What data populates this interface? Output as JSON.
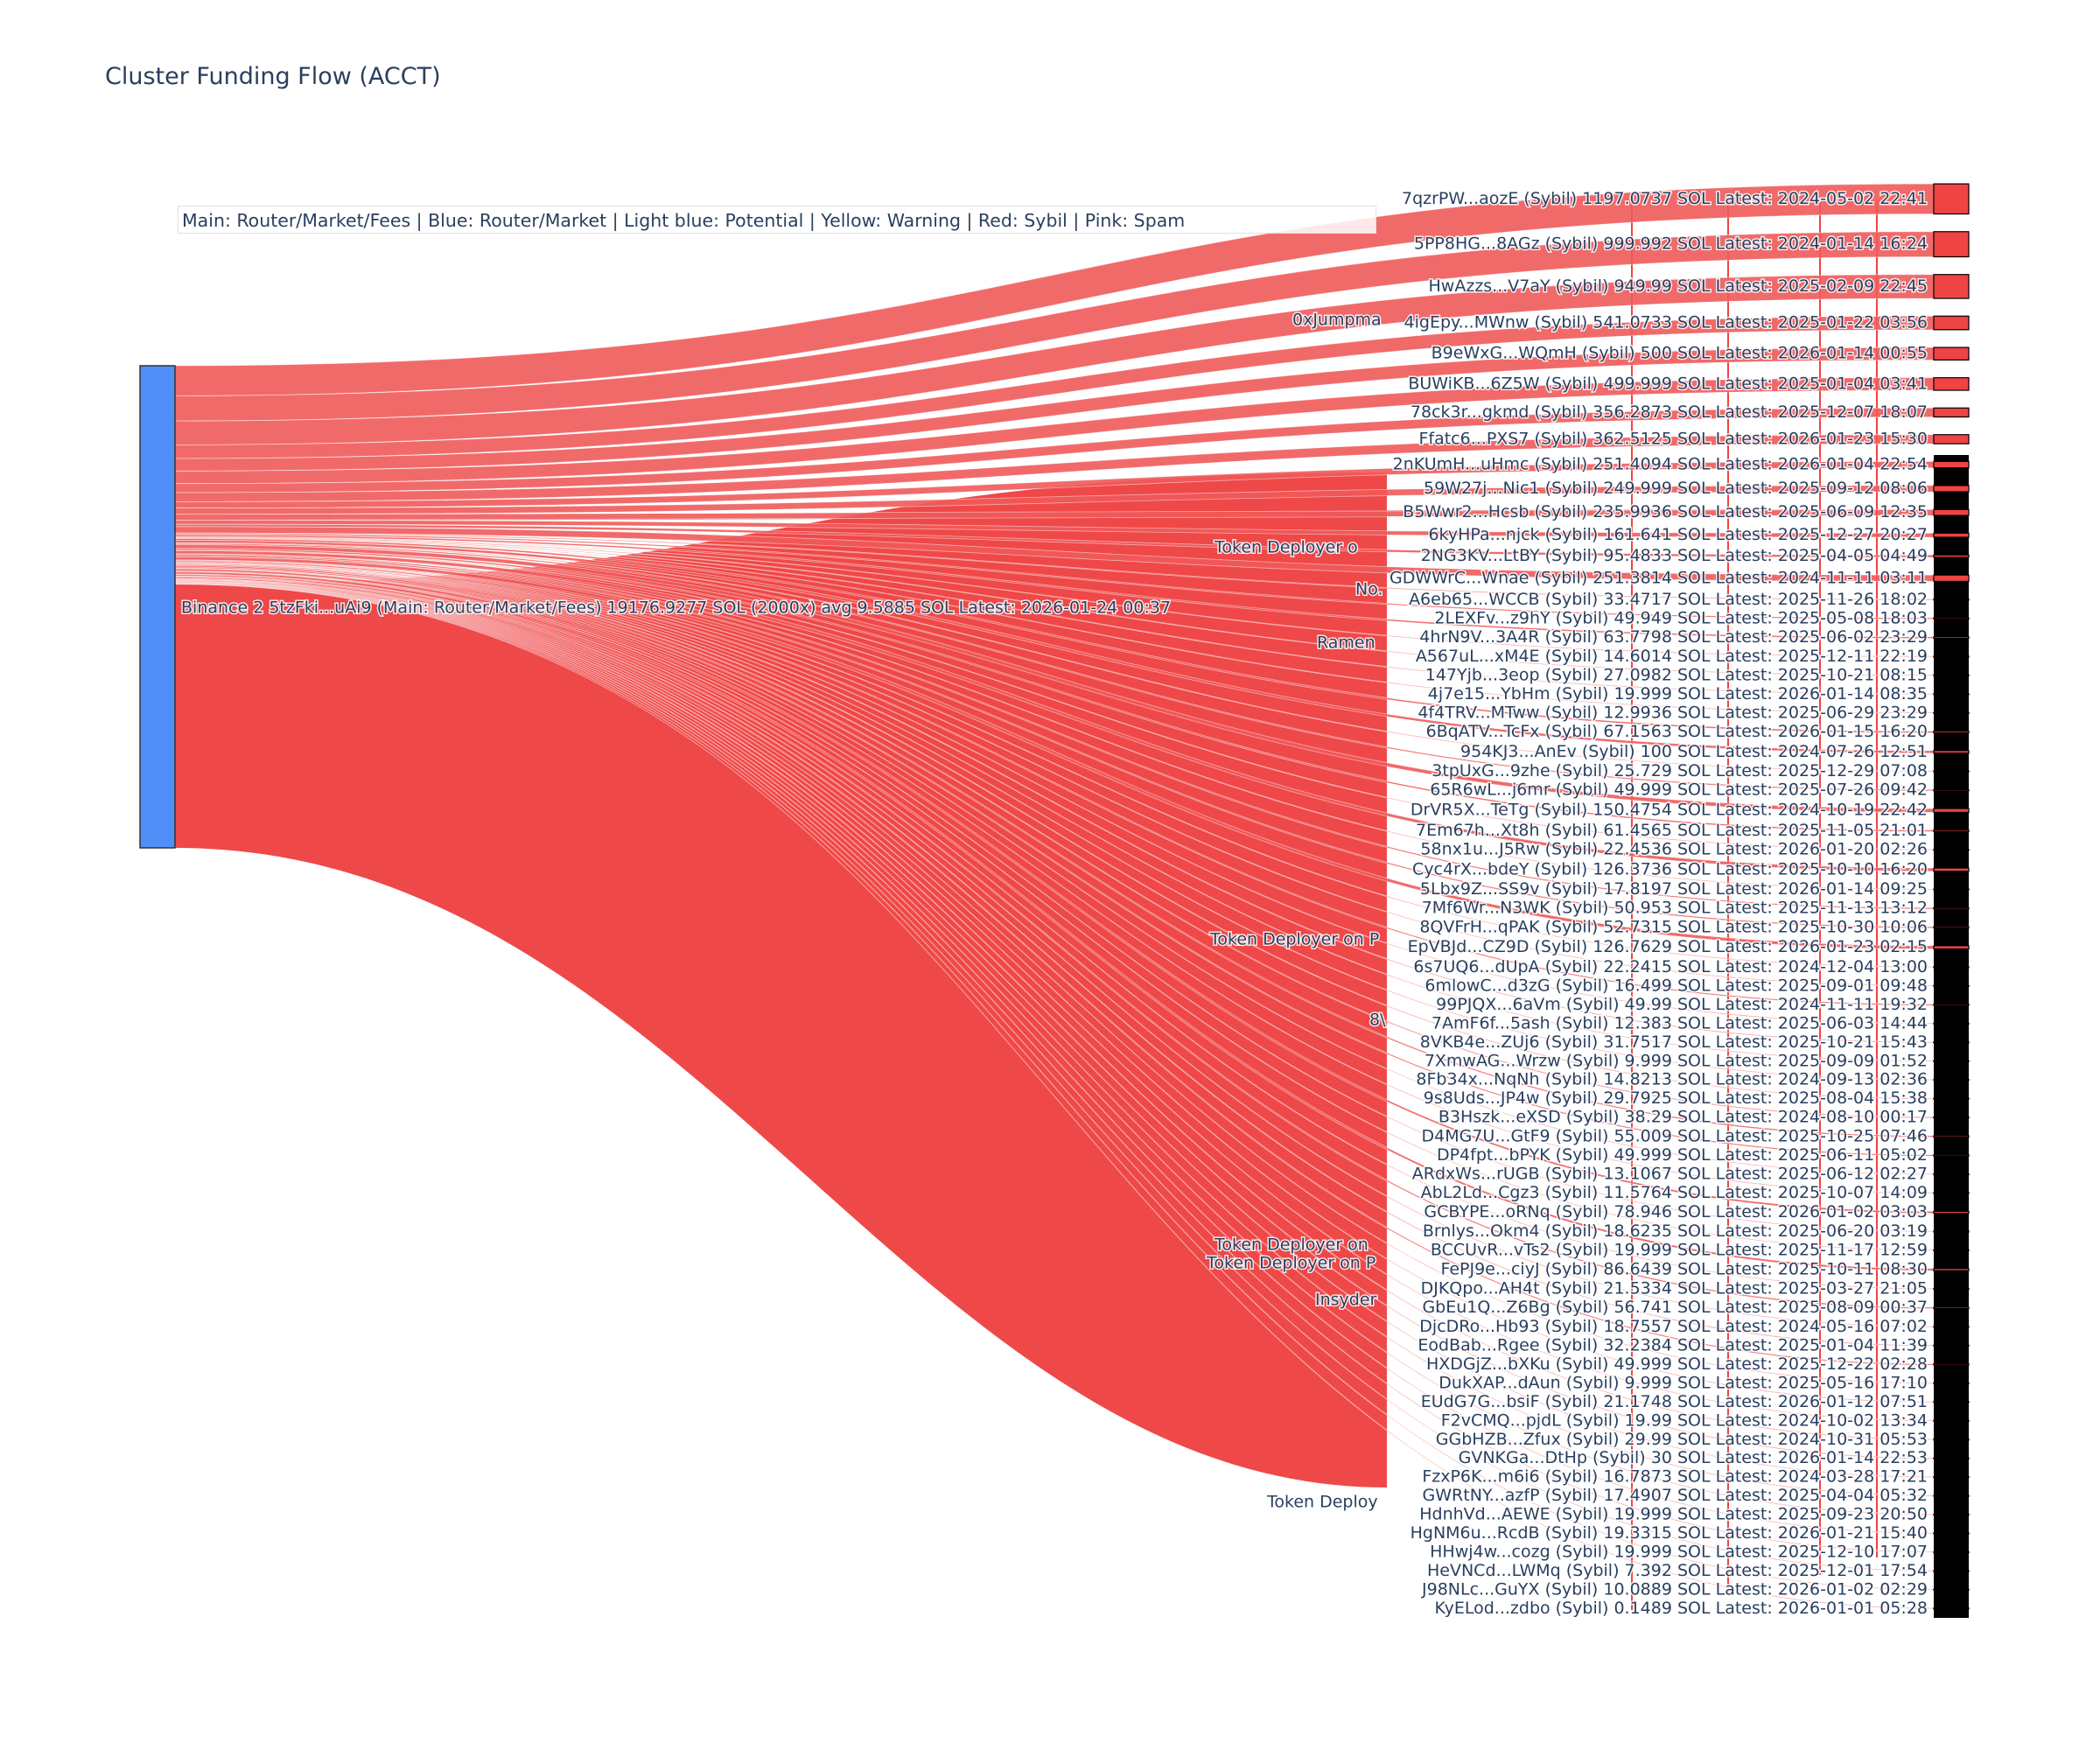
{
  "title": "Cluster Funding Flow (ACCT)",
  "legend_text": "Main: Router/Market/Fees  |  Blue: Router/Market | Light blue: Potential | Yellow: Warning | Red: Sybil | Pink: Spam",
  "colors": {
    "source_node": "#4f8ff7",
    "sybil_link": "#ef4444",
    "sybil_link_light": "#f05a5a",
    "node_outline": "#000000",
    "text": "#2a3f5f"
  },
  "chart_data": {
    "type": "sankey",
    "title": "Cluster Funding Flow (ACCT)",
    "source": {
      "label": "Binance 2 5tzFki...uAi9 (Main: Router/Market/Fees) 19176.9277 SOL (2000x) avg 9.5885 SOL Latest: 2026-01-24 00:37",
      "total_sol": 19176.9277,
      "count": 2000,
      "avg_sol": 9.5885
    },
    "intermediate_labels": [
      "0xJumpma",
      "Token Deployer o",
      "No.",
      "Ramen",
      "Token Deployer on P",
      "8\\",
      "Token Deployer on",
      "Token Deployer on P",
      "Insyder",
      "Token Deploy"
    ],
    "targets": [
      {
        "label": "7qzrPW...aozE (Sybil) 1197.0737 SOL Latest: 2024-05-02 22:41",
        "value": 1197.0737
      },
      {
        "label": "5PP8HG...8AGz (Sybil) 999.992 SOL Latest: 2024-01-14 16:24",
        "value": 999.992
      },
      {
        "label": "HwAzzs...V7aY (Sybil) 949.99 SOL Latest: 2025-02-09 22:45",
        "value": 949.99
      },
      {
        "label": "4igEpy...MWnw (Sybil) 541.0733 SOL Latest: 2025-01-22 03:56",
        "value": 541.0733
      },
      {
        "label": "B9eWxG...WQmH (Sybil) 500 SOL Latest: 2026-01-14 00:55",
        "value": 500
      },
      {
        "label": "BUWiKB...6Z5W (Sybil) 499.999 SOL Latest: 2025-01-04 03:41",
        "value": 499.999
      },
      {
        "label": "78ck3r...gkmd (Sybil) 356.2873 SOL Latest: 2025-12-07 18:07",
        "value": 356.2873
      },
      {
        "label": "Ffatc6...PXS7 (Sybil) 362.5125 SOL Latest: 2026-01-23 15:30",
        "value": 362.5125
      },
      {
        "label": "2nKUmH...uHmc (Sybil) 251.4094 SOL Latest: 2026-01-04 22:54",
        "value": 251.4094
      },
      {
        "label": "59W27j...Nic1 (Sybil) 249.999 SOL Latest: 2025-09-12 08:06",
        "value": 249.999
      },
      {
        "label": "B5Wwr2...Hcsb (Sybil) 235.9936 SOL Latest: 2025-06-09 12:35",
        "value": 235.9936
      },
      {
        "label": "6kyHPa...njck (Sybil) 161.641 SOL Latest: 2025-12-27 20:27",
        "value": 161.641
      },
      {
        "label": "2NG3KV...LtBY (Sybil) 95.4833 SOL Latest: 2025-04-05 04:49",
        "value": 95.4833
      },
      {
        "label": "GDWWrC...Wnae (Sybil) 251.3814 SOL Latest: 2024-11-11 03:11",
        "value": 251.3814
      },
      {
        "label": "A6eb65...WCCB (Sybil) 33.4717 SOL Latest: 2025-11-26 18:02",
        "value": 33.4717
      },
      {
        "label": "2LEXFv...z9hY (Sybil) 49.949 SOL Latest: 2025-05-08 18:03",
        "value": 49.949
      },
      {
        "label": "4hrN9V...3A4R (Sybil) 63.7798 SOL Latest: 2025-06-02 23:29",
        "value": 63.7798
      },
      {
        "label": "A567uL...xM4E (Sybil) 14.6014 SOL Latest: 2025-12-11 22:19",
        "value": 14.6014
      },
      {
        "label": "147Yjb...3eop (Sybil) 27.0982 SOL Latest: 2025-10-21 08:15",
        "value": 27.0982
      },
      {
        "label": "4j7e15...YbHm (Sybil) 19.999 SOL Latest: 2026-01-14 08:35",
        "value": 19.999
      },
      {
        "label": "4f4TRV...MTww (Sybil) 12.9936 SOL Latest: 2025-06-29 23:29",
        "value": 12.9936
      },
      {
        "label": "6BqATV...TcFx (Sybil) 67.1563 SOL Latest: 2026-01-15 16:20",
        "value": 67.1563
      },
      {
        "label": "954KJ3...AnEv (Sybil) 100 SOL Latest: 2024-07-26 12:51",
        "value": 100
      },
      {
        "label": "3tpUxG...9zhe (Sybil) 25.729 SOL Latest: 2025-12-29 07:08",
        "value": 25.729
      },
      {
        "label": "65R6wL...j6mr (Sybil) 49.999 SOL Latest: 2025-07-26 09:42",
        "value": 49.999
      },
      {
        "label": "DrVR5X...TeTg (Sybil) 150.4754 SOL Latest: 2024-10-19 22:42",
        "value": 150.4754
      },
      {
        "label": "7Em67h...Xt8h (Sybil) 61.4565 SOL Latest: 2025-11-05 21:01",
        "value": 61.4565
      },
      {
        "label": "58nx1u...J5Rw (Sybil) 22.4536 SOL Latest: 2026-01-20 02:26",
        "value": 22.4536
      },
      {
        "label": "Cyc4rX...bdeY (Sybil) 126.3736 SOL Latest: 2025-10-10 16:20",
        "value": 126.3736
      },
      {
        "label": "5Lbx9Z...SS9v (Sybil) 17.8197 SOL Latest: 2026-01-14 09:25",
        "value": 17.8197
      },
      {
        "label": "7Mf6Wr...N3WK (Sybil) 50.953 SOL Latest: 2025-11-13 13:12",
        "value": 50.953
      },
      {
        "label": "8QVFrH...qPAK (Sybil) 52.7315 SOL Latest: 2025-10-30 10:06",
        "value": 52.7315
      },
      {
        "label": "EpVBJd...CZ9D (Sybil) 126.7629 SOL Latest: 2026-01-23 02:15",
        "value": 126.7629
      },
      {
        "label": "6s7UQ6...dUpA (Sybil) 22.2415 SOL Latest: 2024-12-04 13:00",
        "value": 22.2415
      },
      {
        "label": "6mlowC...d3zG (Sybil) 16.499 SOL Latest: 2025-09-01 09:48",
        "value": 16.499
      },
      {
        "label": "99PJQX...6aVm (Sybil) 49.99 SOL Latest: 2024-11-11 19:32",
        "value": 49.99
      },
      {
        "label": "7AmF6f...5ash (Sybil) 12.383 SOL Latest: 2025-06-03 14:44",
        "value": 12.383
      },
      {
        "label": "8VKB4e...ZUj6 (Sybil) 31.7517 SOL Latest: 2025-10-21 15:43",
        "value": 31.7517
      },
      {
        "label": "7XmwAG...Wrzw (Sybil) 9.999 SOL Latest: 2025-09-09 01:52",
        "value": 9.999
      },
      {
        "label": "8Fb34x...NqNh (Sybil) 14.8213 SOL Latest: 2024-09-13 02:36",
        "value": 14.8213
      },
      {
        "label": "9s8Uds...JP4w (Sybil) 29.7925 SOL Latest: 2025-08-04 15:38",
        "value": 29.7925
      },
      {
        "label": "B3Hszk...eXSD (Sybil) 38.29 SOL Latest: 2024-08-10 00:17",
        "value": 38.29
      },
      {
        "label": "D4MG7U...GtF9 (Sybil) 55.009 SOL Latest: 2025-10-25 07:46",
        "value": 55.009
      },
      {
        "label": "DP4fpt...bPYK (Sybil) 49.999 SOL Latest: 2025-06-11 05:02",
        "value": 49.999
      },
      {
        "label": "ARdxWs...rUGB (Sybil) 13.1067 SOL Latest: 2025-06-12 02:27",
        "value": 13.1067
      },
      {
        "label": "AbL2Ld...Cgz3 (Sybil) 11.5764 SOL Latest: 2025-10-07 14:09",
        "value": 11.5764
      },
      {
        "label": "GCBYPE...oRNq (Sybil) 78.946 SOL Latest: 2026-01-02 03:03",
        "value": 78.946
      },
      {
        "label": "Brnlys...Okm4 (Sybil) 18.6235 SOL Latest: 2025-06-20 03:19",
        "value": 18.6235
      },
      {
        "label": "BCCUvR...vTs2 (Sybil) 19.999 SOL Latest: 2025-11-17 12:59",
        "value": 19.999
      },
      {
        "label": "FePJ9e...ciyJ (Sybil) 86.6439 SOL Latest: 2025-10-11 08:30",
        "value": 86.6439
      },
      {
        "label": "DJKQpo...AH4t (Sybil) 21.5334 SOL Latest: 2025-03-27 21:05",
        "value": 21.5334
      },
      {
        "label": "GbEu1Q...Z6Bg (Sybil) 56.741 SOL Latest: 2025-08-09 00:37",
        "value": 56.741
      },
      {
        "label": "DjcDRo...Hb93 (Sybil) 18.7557 SOL Latest: 2024-05-16 07:02",
        "value": 18.7557
      },
      {
        "label": "EodBab...Rgee (Sybil) 32.2384 SOL Latest: 2025-01-04 11:39",
        "value": 32.2384
      },
      {
        "label": "HXDGjZ...bXKu (Sybil) 49.999 SOL Latest: 2025-12-22 02:28",
        "value": 49.999
      },
      {
        "label": "DukXAP...dAun (Sybil) 9.999 SOL Latest: 2025-05-16 17:10",
        "value": 9.999
      },
      {
        "label": "EUdG7G...bsiF (Sybil) 21.1748 SOL Latest: 2026-01-12 07:51",
        "value": 21.1748
      },
      {
        "label": "F2vCMQ...pjdL (Sybil) 19.99 SOL Latest: 2024-10-02 13:34",
        "value": 19.99
      },
      {
        "label": "GGbHZB...Zfux (Sybil) 29.99 SOL Latest: 2024-10-31 05:53",
        "value": 29.99
      },
      {
        "label": "GVNKGa...DtHp (Sybil) 30 SOL Latest: 2026-01-14 22:53",
        "value": 30
      },
      {
        "label": "FzxP6K...m6i6 (Sybil) 16.7873 SOL Latest: 2024-03-28 17:21",
        "value": 16.7873
      },
      {
        "label": "GWRtNY...azfP (Sybil) 17.4907 SOL Latest: 2025-04-04 05:32",
        "value": 17.4907
      },
      {
        "label": "HdnhVd...AEWE (Sybil) 19.999 SOL Latest: 2025-09-23 20:50",
        "value": 19.999
      },
      {
        "label": "HgNM6u...RcdB (Sybil) 19.3315 SOL Latest: 2026-01-21 15:40",
        "value": 19.3315
      },
      {
        "label": "HHwj4w...cozg (Sybil) 19.999 SOL Latest: 2025-12-10 17:07",
        "value": 19.999
      },
      {
        "label": "HeVNCd...LWMq (Sybil) 7.392 SOL Latest: 2025-12-01 17:54",
        "value": 7.392
      },
      {
        "label": "J98NLc...GuYX (Sybil) 10.0889 SOL Latest: 2026-01-02 02:29",
        "value": 10.0889
      },
      {
        "label": "KyELod...zdbo (Sybil) 0.1489 SOL Latest: 2026-01-01 05:28",
        "value": 0.1489
      }
    ]
  }
}
